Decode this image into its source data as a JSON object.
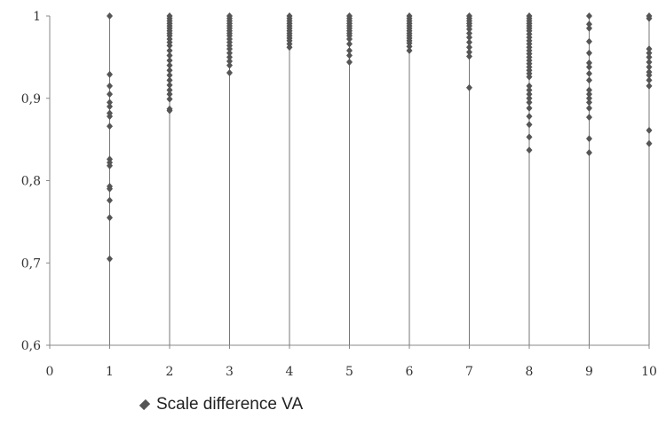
{
  "chart_data": {
    "type": "scatter",
    "title": "",
    "xlabel": "",
    "ylabel": "",
    "xlim": [
      0,
      10
    ],
    "ylim": [
      0.6,
      1.0
    ],
    "x_ticks": [
      {
        "value": 0,
        "label": "0"
      },
      {
        "value": 1,
        "label": "1"
      },
      {
        "value": 2,
        "label": "2"
      },
      {
        "value": 3,
        "label": "3"
      },
      {
        "value": 4,
        "label": "4"
      },
      {
        "value": 5,
        "label": "5"
      },
      {
        "value": 6,
        "label": "6"
      },
      {
        "value": 7,
        "label": "7"
      },
      {
        "value": 8,
        "label": "8"
      },
      {
        "value": 9,
        "label": "9"
      },
      {
        "value": 10,
        "label": "10"
      }
    ],
    "y_ticks": [
      {
        "value": 0.6,
        "label": "0,6"
      },
      {
        "value": 0.7,
        "label": "0,7"
      },
      {
        "value": 0.8,
        "label": "0,8"
      },
      {
        "value": 0.9,
        "label": "0,9"
      },
      {
        "value": 1.0,
        "label": "1"
      }
    ],
    "grid": false,
    "legend_position": "bottom",
    "marker_color": "#555555",
    "stem_color": "#777777",
    "series": [
      {
        "name": "Scale difference VA",
        "points": [
          {
            "x": 1,
            "y": 1.0
          },
          {
            "x": 1,
            "y": 0.929
          },
          {
            "x": 1,
            "y": 0.915
          },
          {
            "x": 1,
            "y": 0.905
          },
          {
            "x": 1,
            "y": 0.895
          },
          {
            "x": 1,
            "y": 0.89
          },
          {
            "x": 1,
            "y": 0.882
          },
          {
            "x": 1,
            "y": 0.878
          },
          {
            "x": 1,
            "y": 0.866
          },
          {
            "x": 1,
            "y": 0.826
          },
          {
            "x": 1,
            "y": 0.822
          },
          {
            "x": 1,
            "y": 0.818
          },
          {
            "x": 1,
            "y": 0.793
          },
          {
            "x": 1,
            "y": 0.79
          },
          {
            "x": 1,
            "y": 0.776
          },
          {
            "x": 1,
            "y": 0.755
          },
          {
            "x": 1,
            "y": 0.705
          },
          {
            "x": 2,
            "y": 1.0
          },
          {
            "x": 2,
            "y": 0.997
          },
          {
            "x": 2,
            "y": 0.994
          },
          {
            "x": 2,
            "y": 0.991
          },
          {
            "x": 2,
            "y": 0.988
          },
          {
            "x": 2,
            "y": 0.985
          },
          {
            "x": 2,
            "y": 0.982
          },
          {
            "x": 2,
            "y": 0.979
          },
          {
            "x": 2,
            "y": 0.976
          },
          {
            "x": 2,
            "y": 0.972
          },
          {
            "x": 2,
            "y": 0.968
          },
          {
            "x": 2,
            "y": 0.964
          },
          {
            "x": 2,
            "y": 0.958
          },
          {
            "x": 2,
            "y": 0.952
          },
          {
            "x": 2,
            "y": 0.946
          },
          {
            "x": 2,
            "y": 0.94
          },
          {
            "x": 2,
            "y": 0.934
          },
          {
            "x": 2,
            "y": 0.928
          },
          {
            "x": 2,
            "y": 0.922
          },
          {
            "x": 2,
            "y": 0.916
          },
          {
            "x": 2,
            "y": 0.91
          },
          {
            "x": 2,
            "y": 0.905
          },
          {
            "x": 2,
            "y": 0.899
          },
          {
            "x": 2,
            "y": 0.887
          },
          {
            "x": 2,
            "y": 0.885
          },
          {
            "x": 3,
            "y": 1.0
          },
          {
            "x": 3,
            "y": 0.997
          },
          {
            "x": 3,
            "y": 0.994
          },
          {
            "x": 3,
            "y": 0.991
          },
          {
            "x": 3,
            "y": 0.988
          },
          {
            "x": 3,
            "y": 0.985
          },
          {
            "x": 3,
            "y": 0.982
          },
          {
            "x": 3,
            "y": 0.979
          },
          {
            "x": 3,
            "y": 0.976
          },
          {
            "x": 3,
            "y": 0.972
          },
          {
            "x": 3,
            "y": 0.968
          },
          {
            "x": 3,
            "y": 0.964
          },
          {
            "x": 3,
            "y": 0.96
          },
          {
            "x": 3,
            "y": 0.955
          },
          {
            "x": 3,
            "y": 0.95
          },
          {
            "x": 3,
            "y": 0.945
          },
          {
            "x": 3,
            "y": 0.94
          },
          {
            "x": 3,
            "y": 0.931
          },
          {
            "x": 4,
            "y": 1.0
          },
          {
            "x": 4,
            "y": 0.997
          },
          {
            "x": 4,
            "y": 0.994
          },
          {
            "x": 4,
            "y": 0.991
          },
          {
            "x": 4,
            "y": 0.988
          },
          {
            "x": 4,
            "y": 0.985
          },
          {
            "x": 4,
            "y": 0.982
          },
          {
            "x": 4,
            "y": 0.979
          },
          {
            "x": 4,
            "y": 0.976
          },
          {
            "x": 4,
            "y": 0.973
          },
          {
            "x": 4,
            "y": 0.97
          },
          {
            "x": 4,
            "y": 0.966
          },
          {
            "x": 4,
            "y": 0.962
          },
          {
            "x": 5,
            "y": 1.0
          },
          {
            "x": 5,
            "y": 0.997
          },
          {
            "x": 5,
            "y": 0.994
          },
          {
            "x": 5,
            "y": 0.991
          },
          {
            "x": 5,
            "y": 0.988
          },
          {
            "x": 5,
            "y": 0.985
          },
          {
            "x": 5,
            "y": 0.982
          },
          {
            "x": 5,
            "y": 0.979
          },
          {
            "x": 5,
            "y": 0.976
          },
          {
            "x": 5,
            "y": 0.972
          },
          {
            "x": 5,
            "y": 0.966
          },
          {
            "x": 5,
            "y": 0.958
          },
          {
            "x": 5,
            "y": 0.952
          },
          {
            "x": 5,
            "y": 0.944
          },
          {
            "x": 6,
            "y": 1.0
          },
          {
            "x": 6,
            "y": 0.997
          },
          {
            "x": 6,
            "y": 0.994
          },
          {
            "x": 6,
            "y": 0.991
          },
          {
            "x": 6,
            "y": 0.988
          },
          {
            "x": 6,
            "y": 0.985
          },
          {
            "x": 6,
            "y": 0.982
          },
          {
            "x": 6,
            "y": 0.979
          },
          {
            "x": 6,
            "y": 0.976
          },
          {
            "x": 6,
            "y": 0.973
          },
          {
            "x": 6,
            "y": 0.97
          },
          {
            "x": 6,
            "y": 0.967
          },
          {
            "x": 6,
            "y": 0.963
          },
          {
            "x": 6,
            "y": 0.958
          },
          {
            "x": 7,
            "y": 1.0
          },
          {
            "x": 7,
            "y": 0.997
          },
          {
            "x": 7,
            "y": 0.994
          },
          {
            "x": 7,
            "y": 0.991
          },
          {
            "x": 7,
            "y": 0.988
          },
          {
            "x": 7,
            "y": 0.984
          },
          {
            "x": 7,
            "y": 0.979
          },
          {
            "x": 7,
            "y": 0.974
          },
          {
            "x": 7,
            "y": 0.968
          },
          {
            "x": 7,
            "y": 0.962
          },
          {
            "x": 7,
            "y": 0.956
          },
          {
            "x": 7,
            "y": 0.951
          },
          {
            "x": 7,
            "y": 0.913
          },
          {
            "x": 8,
            "y": 1.0
          },
          {
            "x": 8,
            "y": 0.997
          },
          {
            "x": 8,
            "y": 0.994
          },
          {
            "x": 8,
            "y": 0.991
          },
          {
            "x": 8,
            "y": 0.988
          },
          {
            "x": 8,
            "y": 0.985
          },
          {
            "x": 8,
            "y": 0.982
          },
          {
            "x": 8,
            "y": 0.978
          },
          {
            "x": 8,
            "y": 0.974
          },
          {
            "x": 8,
            "y": 0.97
          },
          {
            "x": 8,
            "y": 0.966
          },
          {
            "x": 8,
            "y": 0.962
          },
          {
            "x": 8,
            "y": 0.958
          },
          {
            "x": 8,
            "y": 0.954
          },
          {
            "x": 8,
            "y": 0.95
          },
          {
            "x": 8,
            "y": 0.946
          },
          {
            "x": 8,
            "y": 0.942
          },
          {
            "x": 8,
            "y": 0.938
          },
          {
            "x": 8,
            "y": 0.934
          },
          {
            "x": 8,
            "y": 0.93
          },
          {
            "x": 8,
            "y": 0.926
          },
          {
            "x": 8,
            "y": 0.915
          },
          {
            "x": 8,
            "y": 0.91
          },
          {
            "x": 8,
            "y": 0.905
          },
          {
            "x": 8,
            "y": 0.9
          },
          {
            "x": 8,
            "y": 0.895
          },
          {
            "x": 8,
            "y": 0.888
          },
          {
            "x": 8,
            "y": 0.878
          },
          {
            "x": 8,
            "y": 0.868
          },
          {
            "x": 8,
            "y": 0.853
          },
          {
            "x": 8,
            "y": 0.837
          },
          {
            "x": 9,
            "y": 1.0
          },
          {
            "x": 9,
            "y": 0.99
          },
          {
            "x": 9,
            "y": 0.985
          },
          {
            "x": 9,
            "y": 0.969
          },
          {
            "x": 9,
            "y": 0.955
          },
          {
            "x": 9,
            "y": 0.943
          },
          {
            "x": 9,
            "y": 0.938
          },
          {
            "x": 9,
            "y": 0.93
          },
          {
            "x": 9,
            "y": 0.922
          },
          {
            "x": 9,
            "y": 0.91
          },
          {
            "x": 9,
            "y": 0.905
          },
          {
            "x": 9,
            "y": 0.9
          },
          {
            "x": 9,
            "y": 0.895
          },
          {
            "x": 9,
            "y": 0.888
          },
          {
            "x": 9,
            "y": 0.877
          },
          {
            "x": 9,
            "y": 0.851
          },
          {
            "x": 9,
            "y": 0.834
          },
          {
            "x": 10,
            "y": 1.0
          },
          {
            "x": 10,
            "y": 0.997
          },
          {
            "x": 10,
            "y": 0.96
          },
          {
            "x": 10,
            "y": 0.955
          },
          {
            "x": 10,
            "y": 0.95
          },
          {
            "x": 10,
            "y": 0.944
          },
          {
            "x": 10,
            "y": 0.938
          },
          {
            "x": 10,
            "y": 0.932
          },
          {
            "x": 10,
            "y": 0.928
          },
          {
            "x": 10,
            "y": 0.922
          },
          {
            "x": 10,
            "y": 0.915
          },
          {
            "x": 10,
            "y": 0.861
          },
          {
            "x": 10,
            "y": 0.845
          }
        ]
      }
    ]
  },
  "legend": {
    "marker": "diamond",
    "label": "Scale difference VA"
  }
}
